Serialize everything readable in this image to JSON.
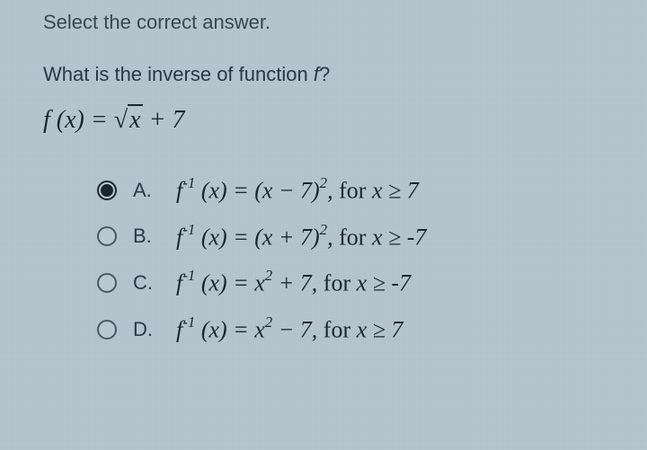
{
  "instruction": "Select the correct answer.",
  "question": "What is the inverse of function f?",
  "function_definition": {
    "lhs": "f (x)",
    "rhs_prefix": "= ",
    "sqrt_content": "x",
    "rhs_suffix": " + 7"
  },
  "choices": [
    {
      "letter": "A.",
      "selected": true,
      "math_html": "<i>f</i><sup>-1</sup> (<i>x</i>) = (<i>x</i> − 7)<sup>2</sup>, <span class='upright'>for</span> <i>x</i> ≥ 7"
    },
    {
      "letter": "B.",
      "selected": false,
      "math_html": "<i>f</i><sup>-1</sup> (<i>x</i>) = (<i>x</i> + 7)<sup>2</sup>, <span class='upright'>for</span> <i>x</i> ≥ -7"
    },
    {
      "letter": "C.",
      "selected": false,
      "math_html": "<i>f</i><sup>-1</sup> (<i>x</i>) = <i>x</i><sup>2</sup> + 7, <span class='upright'>for</span> <i>x</i> ≥ -7"
    },
    {
      "letter": "D.",
      "selected": false,
      "math_html": "<i>f</i><sup>-1</sup> (<i>x</i>) = <i>x</i><sup>2</sup> − 7, <span class='upright'>for</span> <i>x</i> ≥ 7"
    }
  ],
  "colors": {
    "background": "#b8c8d0",
    "text_primary": "#2a3845",
    "text_math": "#1a2530",
    "radio_border": "#4a5865"
  },
  "typography": {
    "instruction_fontsize": 22,
    "question_fontsize": 22,
    "function_fontsize": 28,
    "choice_math_fontsize": 26,
    "choice_letter_fontsize": 22
  }
}
